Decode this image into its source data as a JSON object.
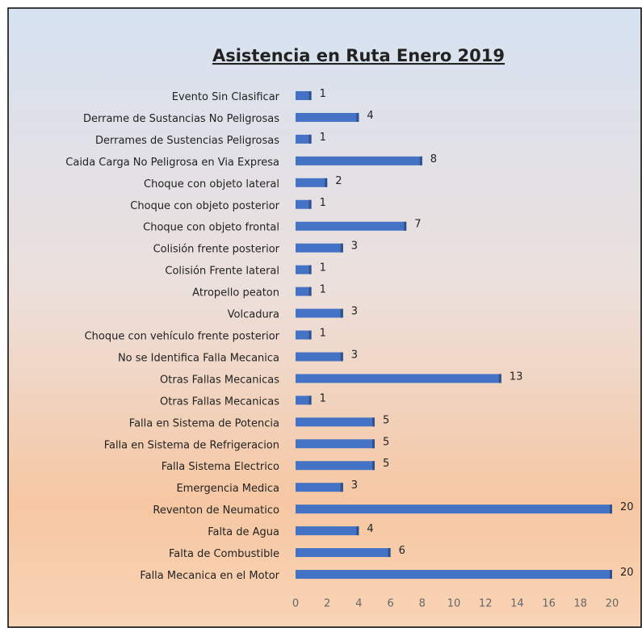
{
  "chart_data": {
    "type": "bar",
    "orientation": "horizontal",
    "title": "Asistencia en Ruta Enero 2019",
    "categories": [
      "Evento Sin Clasificar",
      "Derrame de Sustancias No Peligrosas",
      "Derrames de Sustencias Peligrosas",
      "Caida Carga No Peligrosa en Via Expresa",
      "Choque con objeto lateral",
      "Choque con objeto posterior",
      "Choque con objeto frontal",
      "Colisión frente posterior",
      "Colisión Frente lateral",
      "Atropello peaton",
      "Volcadura",
      "Choque con vehículo frente posterior",
      "No se Identifica Falla Mecanica",
      "Otras Fallas Mecanicas",
      "Otras Fallas Mecanicas",
      "Falla en Sistema de Potencia",
      "Falla en Sistema de Refrigeracion",
      "Falla Sistema Electrico",
      "Emergencia Medica",
      "Reventon de Neumatico",
      "Falta de Agua",
      "Falta de Combustible",
      "Falla Mecanica en el Motor"
    ],
    "values": [
      1,
      4,
      1,
      8,
      2,
      1,
      7,
      3,
      1,
      1,
      3,
      1,
      3,
      13,
      1,
      5,
      5,
      5,
      3,
      20,
      4,
      6,
      20
    ],
    "color": "#4472c4",
    "xlim": [
      0,
      20
    ],
    "xticks": [
      0,
      2,
      4,
      6,
      8,
      10,
      12,
      14,
      16,
      18,
      20
    ],
    "grid": false
  }
}
